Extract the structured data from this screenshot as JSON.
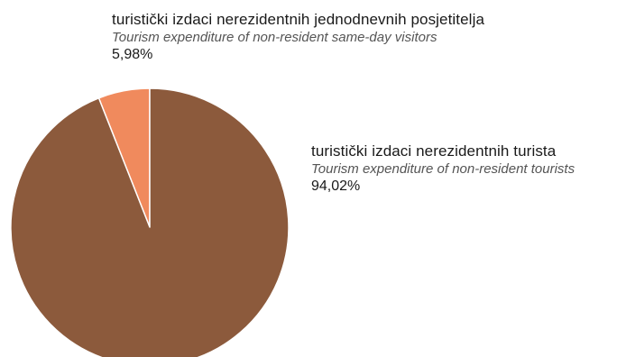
{
  "chart_data": {
    "type": "pie",
    "title": "",
    "slices": [
      {
        "label_hr": "turistički izdaci nerezidentnih jednodnevnih posjetitelja",
        "label_en": "Tourism expenditure of non-resident same-day visitors",
        "value": 5.98,
        "value_label": "5,98%",
        "color": "#f08a5d"
      },
      {
        "label_hr": "turistički izdaci nerezidentnih turista",
        "label_en": "Tourism expenditure of non-resident tourists",
        "value": 94.02,
        "value_label": "94,02%",
        "color": "#8c5a3c"
      }
    ],
    "start_angle_deg": -90,
    "direction": "counterclockwise",
    "separator_color": "#ffffff"
  }
}
